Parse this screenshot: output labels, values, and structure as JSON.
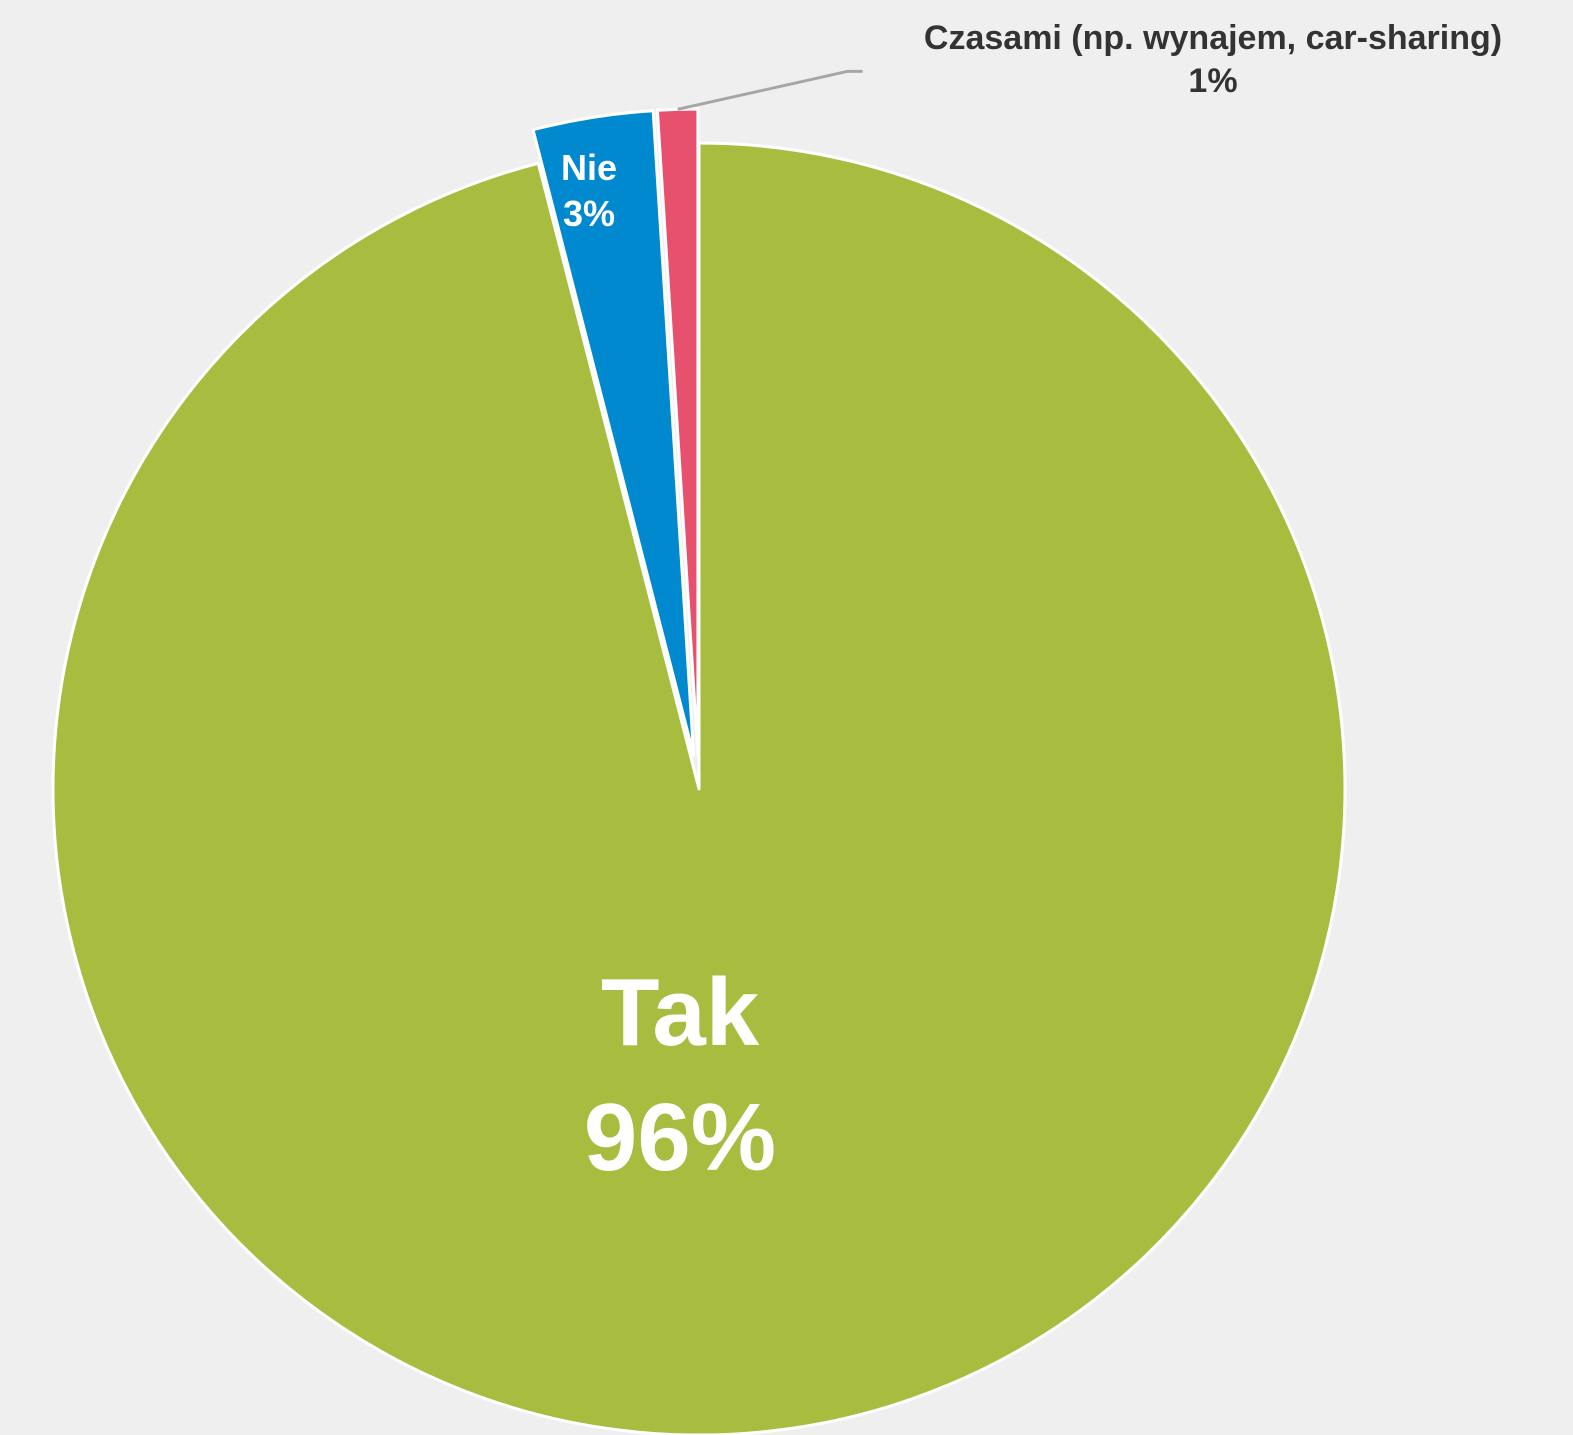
{
  "chart_data": {
    "type": "pie",
    "slices": [
      {
        "label": "Tak",
        "value": 96,
        "value_label": "96%",
        "color": "#a8bc3f",
        "exploded": false,
        "label_color": "#ffffff"
      },
      {
        "label": "Nie",
        "value": 3,
        "value_label": "3%",
        "color": "#0089cf",
        "exploded": true,
        "label_color": "#ffffff"
      },
      {
        "label": "Czasami (np. wynajem, car-sharing)",
        "value": 1,
        "value_label": "1%",
        "color": "#e8516e",
        "exploded": true,
        "label_color": "#333333",
        "callout": true
      }
    ],
    "background": "#efefef",
    "legend": "none"
  }
}
